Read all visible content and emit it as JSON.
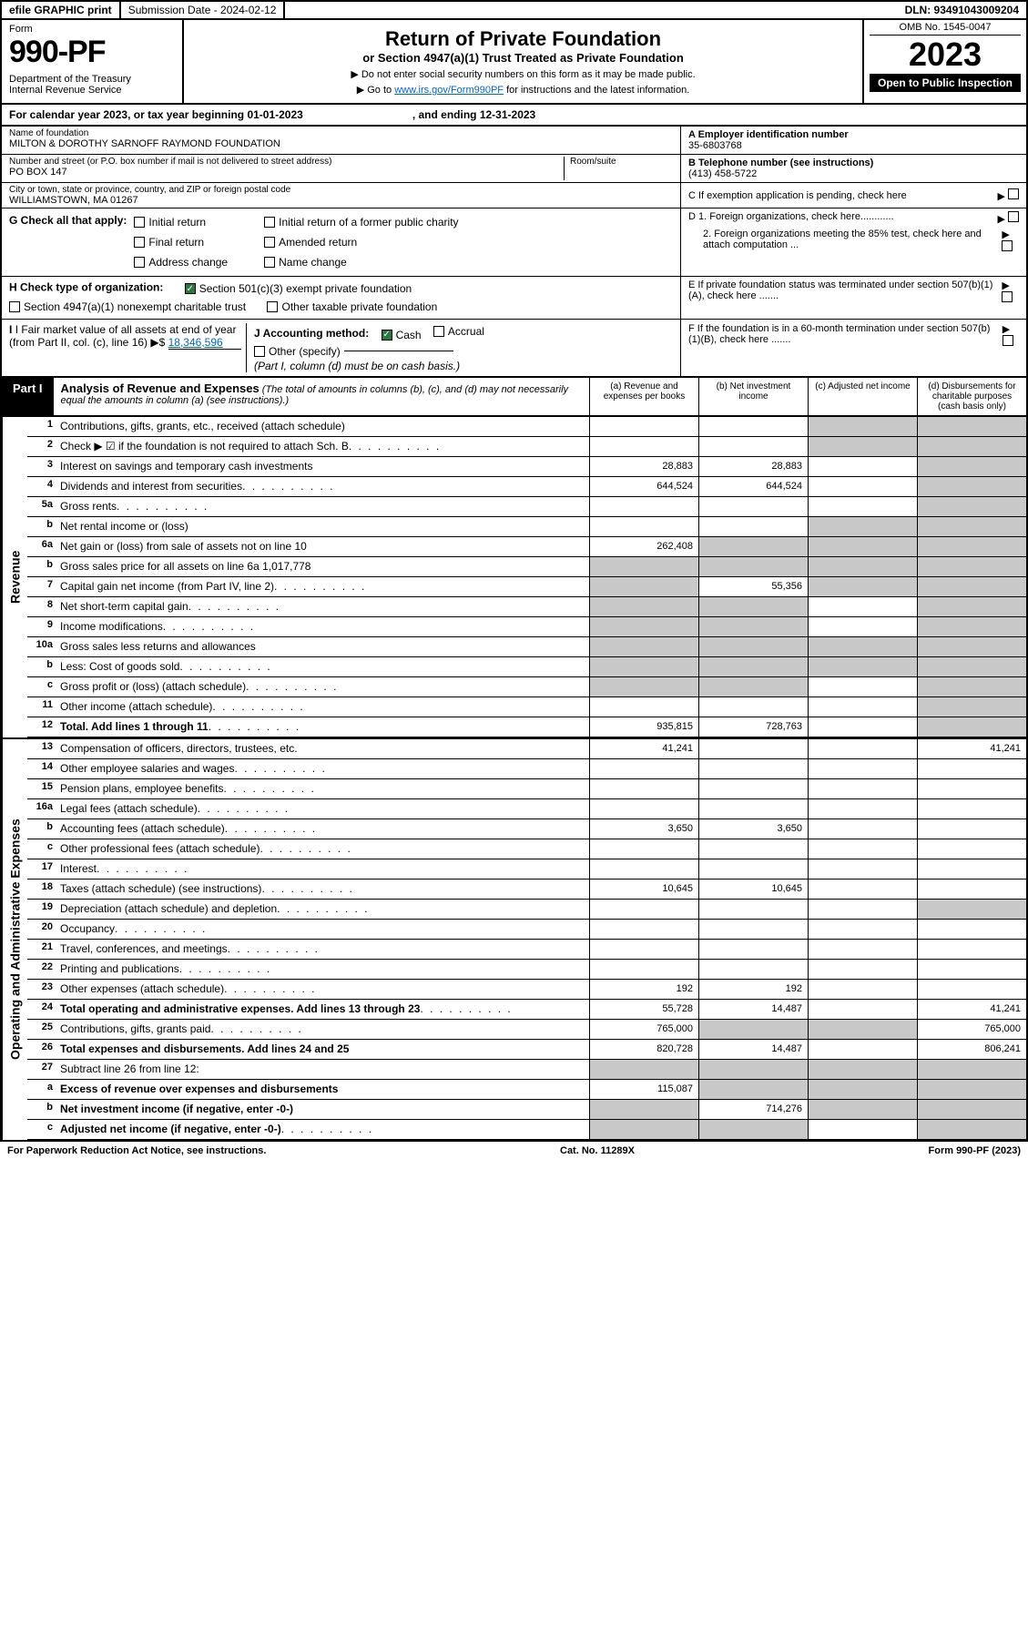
{
  "topbar": {
    "efile": "efile GRAPHIC print",
    "submission": "Submission Date - 2024-02-12",
    "dln": "DLN: 93491043009204"
  },
  "header": {
    "form_label": "Form",
    "form_num": "990-PF",
    "dept": "Department of the Treasury\nInternal Revenue Service",
    "title": "Return of Private Foundation",
    "sub": "or Section 4947(a)(1) Trust Treated as Private Foundation",
    "note1": "▶ Do not enter social security numbers on this form as it may be made public.",
    "note2_pre": "▶ Go to ",
    "note2_link": "www.irs.gov/Form990PF",
    "note2_post": " for instructions and the latest information.",
    "omb": "OMB No. 1545-0047",
    "year": "2023",
    "open": "Open to Public Inspection"
  },
  "cal": {
    "begin": "For calendar year 2023, or tax year beginning 01-01-2023",
    "end": ", and ending 12-31-2023"
  },
  "info": {
    "name_lbl": "Name of foundation",
    "name": "MILTON & DOROTHY SARNOFF RAYMOND FOUNDATION",
    "ein_lbl": "A Employer identification number",
    "ein": "35-6803768",
    "addr_lbl": "Number and street (or P.O. box number if mail is not delivered to street address)",
    "addr": "PO BOX 147",
    "room_lbl": "Room/suite",
    "tel_lbl": "B Telephone number (see instructions)",
    "tel": "(413) 458-5722",
    "city_lbl": "City or town, state or province, country, and ZIP or foreign postal code",
    "city": "WILLIAMSTOWN, MA  01267",
    "c": "C If exemption application is pending, check here",
    "d1": "D 1. Foreign organizations, check here............",
    "d2": "2. Foreign organizations meeting the 85% test, check here and attach computation ...",
    "e": "E  If private foundation status was terminated under section 507(b)(1)(A), check here .......",
    "f": "F  If the foundation is in a 60-month termination under section 507(b)(1)(B), check here .......",
    "g_label": "G Check all that apply:",
    "g_opts": [
      "Initial return",
      "Initial return of a former public charity",
      "Final return",
      "Amended return",
      "Address change",
      "Name change"
    ],
    "h_label": "H Check type of organization:",
    "h1": "Section 501(c)(3) exempt private foundation",
    "h2": "Section 4947(a)(1) nonexempt charitable trust",
    "h3": "Other taxable private foundation",
    "i_label": "I Fair market value of all assets at end of year (from Part II, col. (c), line 16)",
    "i_val": "18,346,596",
    "j_label": "J Accounting method:",
    "j_cash": "Cash",
    "j_accrual": "Accrual",
    "j_other": "Other (specify)",
    "j_note": "(Part I, column (d) must be on cash basis.)"
  },
  "part1": {
    "tab": "Part I",
    "title": "Analysis of Revenue and Expenses",
    "note": "(The total of amounts in columns (b), (c), and (d) may not necessarily equal the amounts in column (a) (see instructions).)",
    "col_a": "(a)   Revenue and expenses per books",
    "col_b": "(b)   Net investment income",
    "col_c": "(c)   Adjusted net income",
    "col_d": "(d)   Disbursements for charitable purposes (cash basis only)"
  },
  "revenue_label": "Revenue",
  "expense_label": "Operating and Administrative Expenses",
  "rows": [
    {
      "n": "1",
      "d": "Contributions, gifts, grants, etc., received (attach schedule)",
      "a": "",
      "b": "",
      "c": "s",
      "ds": "s"
    },
    {
      "n": "2",
      "d": "Check ▶ ☑ if the foundation is not required to attach Sch. B",
      "a": "",
      "b": "",
      "c": "s",
      "ds": "s",
      "dots": true
    },
    {
      "n": "3",
      "d": "Interest on savings and temporary cash investments",
      "a": "28,883",
      "b": "28,883",
      "c": "",
      "ds": "s"
    },
    {
      "n": "4",
      "d": "Dividends and interest from securities",
      "a": "644,524",
      "b": "644,524",
      "c": "",
      "ds": "s",
      "dots": true
    },
    {
      "n": "5a",
      "d": "Gross rents",
      "a": "",
      "b": "",
      "c": "",
      "ds": "s",
      "dots": true
    },
    {
      "n": "b",
      "d": "Net rental income or (loss)",
      "a": "",
      "b": "",
      "c": "s",
      "ds": "s",
      "line": true
    },
    {
      "n": "6a",
      "d": "Net gain or (loss) from sale of assets not on line 10",
      "a": "262,408",
      "b": "s",
      "c": "s",
      "ds": "s"
    },
    {
      "n": "b",
      "d": "Gross sales price for all assets on line 6a            1,017,778",
      "a": "s",
      "b": "s",
      "c": "s",
      "ds": "s",
      "line": true
    },
    {
      "n": "7",
      "d": "Capital gain net income (from Part IV, line 2)",
      "a": "s",
      "b": "55,356",
      "c": "s",
      "ds": "s",
      "dots": true
    },
    {
      "n": "8",
      "d": "Net short-term capital gain",
      "a": "s",
      "b": "s",
      "c": "",
      "ds": "s",
      "dots": true
    },
    {
      "n": "9",
      "d": "Income modifications",
      "a": "s",
      "b": "s",
      "c": "",
      "ds": "s",
      "dots": true
    },
    {
      "n": "10a",
      "d": "Gross sales less returns and allowances",
      "a": "s",
      "b": "s",
      "c": "s",
      "ds": "s",
      "line": true
    },
    {
      "n": "b",
      "d": "Less: Cost of goods sold",
      "a": "s",
      "b": "s",
      "c": "s",
      "ds": "s",
      "dots": true,
      "line": true
    },
    {
      "n": "c",
      "d": "Gross profit or (loss) (attach schedule)",
      "a": "s",
      "b": "s",
      "c": "",
      "ds": "s",
      "dots": true
    },
    {
      "n": "11",
      "d": "Other income (attach schedule)",
      "a": "",
      "b": "",
      "c": "",
      "ds": "s",
      "dots": true
    },
    {
      "n": "12",
      "d": "Total. Add lines 1 through 11",
      "a": "935,815",
      "b": "728,763",
      "c": "",
      "ds": "s",
      "bold": true,
      "dots": true
    }
  ],
  "exp_rows": [
    {
      "n": "13",
      "d": "Compensation of officers, directors, trustees, etc.",
      "a": "41,241",
      "b": "",
      "c": "",
      "ds": "41,241"
    },
    {
      "n": "14",
      "d": "Other employee salaries and wages",
      "a": "",
      "b": "",
      "c": "",
      "ds": "",
      "dots": true
    },
    {
      "n": "15",
      "d": "Pension plans, employee benefits",
      "a": "",
      "b": "",
      "c": "",
      "ds": "",
      "dots": true
    },
    {
      "n": "16a",
      "d": "Legal fees (attach schedule)",
      "a": "",
      "b": "",
      "c": "",
      "ds": "",
      "dots": true
    },
    {
      "n": "b",
      "d": "Accounting fees (attach schedule)",
      "a": "3,650",
      "b": "3,650",
      "c": "",
      "ds": "",
      "dots": true
    },
    {
      "n": "c",
      "d": "Other professional fees (attach schedule)",
      "a": "",
      "b": "",
      "c": "",
      "ds": "",
      "dots": true
    },
    {
      "n": "17",
      "d": "Interest",
      "a": "",
      "b": "",
      "c": "",
      "ds": "",
      "dots": true
    },
    {
      "n": "18",
      "d": "Taxes (attach schedule) (see instructions)",
      "a": "10,645",
      "b": "10,645",
      "c": "",
      "ds": "",
      "dots": true
    },
    {
      "n": "19",
      "d": "Depreciation (attach schedule) and depletion",
      "a": "",
      "b": "",
      "c": "",
      "ds": "s",
      "dots": true
    },
    {
      "n": "20",
      "d": "Occupancy",
      "a": "",
      "b": "",
      "c": "",
      "ds": "",
      "dots": true
    },
    {
      "n": "21",
      "d": "Travel, conferences, and meetings",
      "a": "",
      "b": "",
      "c": "",
      "ds": "",
      "dots": true
    },
    {
      "n": "22",
      "d": "Printing and publications",
      "a": "",
      "b": "",
      "c": "",
      "ds": "",
      "dots": true
    },
    {
      "n": "23",
      "d": "Other expenses (attach schedule)",
      "a": "192",
      "b": "192",
      "c": "",
      "ds": "",
      "dots": true
    },
    {
      "n": "24",
      "d": "Total operating and administrative expenses. Add lines 13 through 23",
      "a": "55,728",
      "b": "14,487",
      "c": "",
      "ds": "41,241",
      "bold": true,
      "dots": true
    },
    {
      "n": "25",
      "d": "Contributions, gifts, grants paid",
      "a": "765,000",
      "b": "s",
      "c": "s",
      "ds": "765,000",
      "dots": true
    },
    {
      "n": "26",
      "d": "Total expenses and disbursements. Add lines 24 and 25",
      "a": "820,728",
      "b": "14,487",
      "c": "",
      "ds": "806,241",
      "bold": true
    },
    {
      "n": "27",
      "d": "Subtract line 26 from line 12:",
      "a": "s",
      "b": "s",
      "c": "s",
      "ds": "s"
    },
    {
      "n": "a",
      "d": "Excess of revenue over expenses and disbursements",
      "a": "115,087",
      "b": "s",
      "c": "s",
      "ds": "s",
      "bold": true
    },
    {
      "n": "b",
      "d": "Net investment income (if negative, enter -0-)",
      "a": "s",
      "b": "714,276",
      "c": "s",
      "ds": "s",
      "bold": true
    },
    {
      "n": "c",
      "d": "Adjusted net income (if negative, enter -0-)",
      "a": "s",
      "b": "s",
      "c": "",
      "ds": "s",
      "bold": true,
      "dots": true
    }
  ],
  "footer": {
    "left": "For Paperwork Reduction Act Notice, see instructions.",
    "mid": "Cat. No. 11289X",
    "right": "Form 990-PF (2023)"
  }
}
